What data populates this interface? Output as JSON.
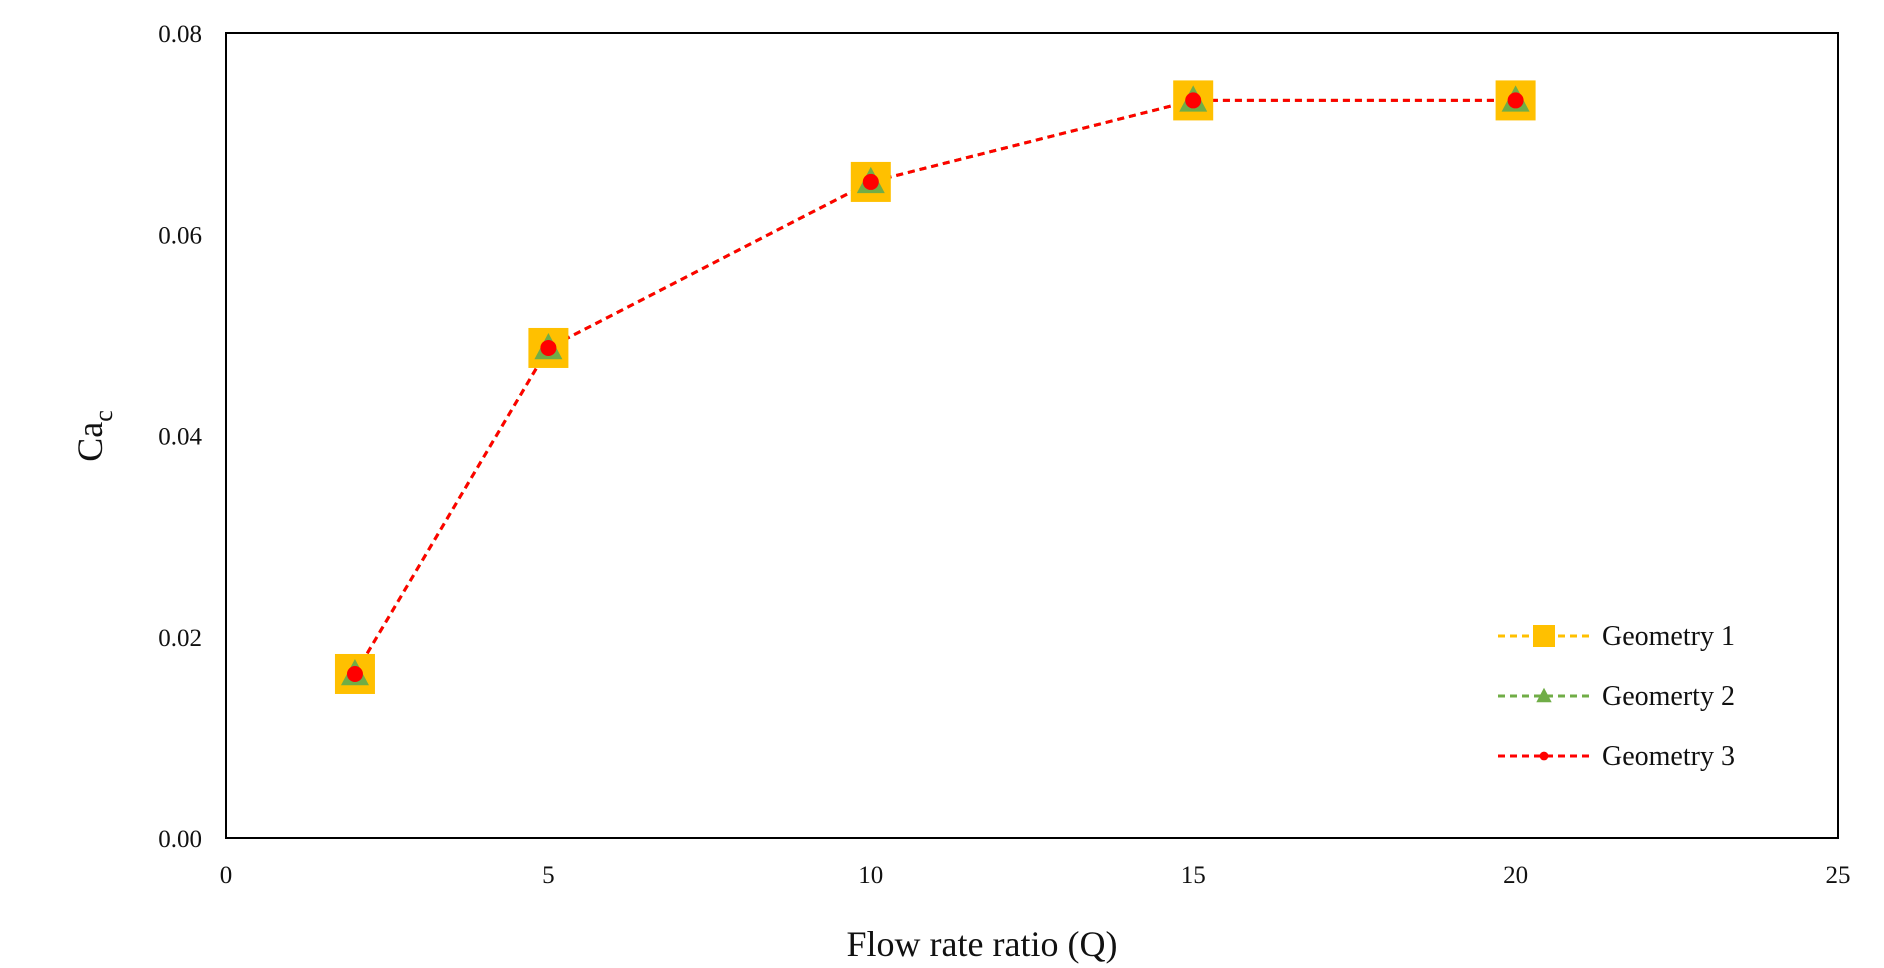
{
  "chart_data": {
    "type": "line",
    "title": "",
    "xlabel": "Flow rate ratio (Q)",
    "ylabel": "Ca",
    "ylabel_subscript": "c",
    "xlim": [
      0,
      25
    ],
    "ylim": [
      0,
      0.08
    ],
    "x_ticks": [
      "0",
      "5",
      "10",
      "15",
      "20",
      "25"
    ],
    "y_ticks": [
      "0.00",
      "0.02",
      "0.04",
      "0.06",
      "0.08"
    ],
    "grid": false,
    "legend_position": "bottom-right",
    "series": [
      {
        "name": "Geometry 1",
        "marker": "square",
        "color": "#FFC000",
        "x": [
          2,
          5,
          10,
          15,
          20
        ],
        "y": [
          0.0163,
          0.0487,
          0.0652,
          0.0733,
          0.0733
        ]
      },
      {
        "name": "Geomerty 2",
        "marker": "triangle",
        "color": "#70AD47",
        "x": [
          2,
          5,
          10,
          15,
          20
        ],
        "y": [
          0.0163,
          0.0487,
          0.0652,
          0.0733,
          0.0733
        ]
      },
      {
        "name": "Geometry 3",
        "marker": "circle",
        "color": "#FF0000",
        "x": [
          2,
          5,
          10,
          15,
          20
        ],
        "y": [
          0.0163,
          0.0487,
          0.0652,
          0.0733,
          0.0733
        ]
      }
    ]
  }
}
